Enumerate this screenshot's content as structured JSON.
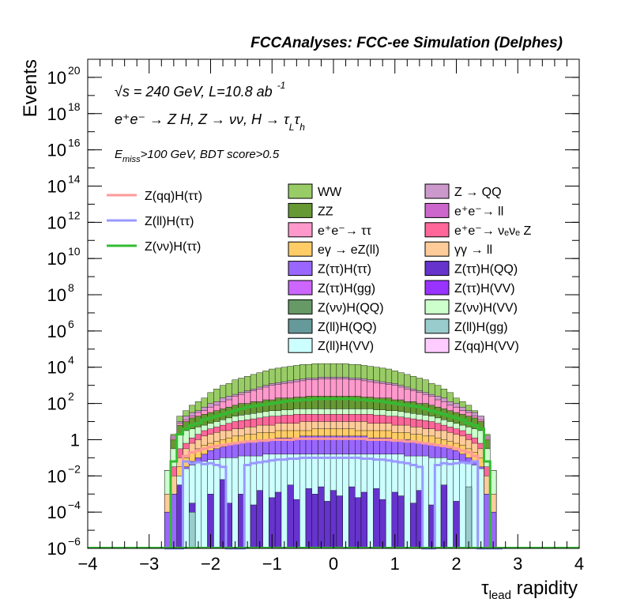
{
  "header": {
    "title": "FCCAnalyses: FCC-ee Simulation (Delphes)"
  },
  "annotations": {
    "line1": "√s = 240 GeV, L=10.8 ab",
    "line1_sup": "-1",
    "line2": "e⁺e⁻ → Z H, Z → νν, H → τ",
    "line2_sub1": "L",
    "line2_mid": "τ",
    "line2_sub2": "h",
    "line3_pre": "E",
    "line3_sub": "miss",
    "line3_post": ">100 GeV, BDT score>0.5"
  },
  "legend_signal": [
    {
      "label": "Z(qq)H(ττ)",
      "color": "#ff9999"
    },
    {
      "label": "Z(ll)H(ττ)",
      "color": "#9999ff"
    },
    {
      "label": "Z(νν)H(ττ)",
      "color": "#33bb33"
    }
  ],
  "legend_bkg": [
    {
      "label": "WW",
      "color": "#99cc66"
    },
    {
      "label": "Z → QQ",
      "color": "#cc99cc"
    },
    {
      "label": "ZZ",
      "color": "#669933"
    },
    {
      "label": "e⁺e⁻→ ll",
      "color": "#cc66cc"
    },
    {
      "label": "e⁺e⁻→ ττ",
      "color": "#ff99cc"
    },
    {
      "label": "e⁺e⁻→ νₑνₑ Z",
      "color": "#ff6699"
    },
    {
      "label": "eγ → eZ(ll)",
      "color": "#ffcc66"
    },
    {
      "label": "γγ → ll",
      "color": "#ffcc99"
    },
    {
      "label": "Z(ττ)H(ττ)",
      "color": "#9966ff"
    },
    {
      "label": "Z(ττ)H(QQ)",
      "color": "#6633cc"
    },
    {
      "label": "Z(ττ)H(gg)",
      "color": "#cc66ff"
    },
    {
      "label": "Z(ττ)H(VV)",
      "color": "#9933ff"
    },
    {
      "label": "Z(νν)H(QQ)",
      "color": "#669966"
    },
    {
      "label": "Z(νν)H(VV)",
      "color": "#ccffcc"
    },
    {
      "label": "Z(ll)H(QQ)",
      "color": "#669999"
    },
    {
      "label": "Z(ll)H(gg)",
      "color": "#99cccc"
    },
    {
      "label": "Z(ll)H(VV)",
      "color": "#ccffff"
    },
    {
      "label": "Z(qq)H(VV)",
      "color": "#ffccff"
    }
  ],
  "chart_data": {
    "type": "area",
    "title": "FCCAnalyses: FCC-ee Simulation (Delphes)",
    "xlabel": "τlead rapidity",
    "xlabel_main": "τ",
    "xlabel_sub": "lead",
    "xlabel_post": " rapidity",
    "ylabel": "Events",
    "log_y": true,
    "xlim": [
      -4,
      4
    ],
    "ylim_exp": [
      -6,
      21
    ],
    "x_ticks": [
      "−4",
      "−3",
      "−2",
      "−1",
      "0",
      "1",
      "2",
      "3",
      "4"
    ],
    "y_ticks": [
      {
        "base": "10",
        "exp": "−6",
        "pos": -6
      },
      {
        "base": "10",
        "exp": "−4",
        "pos": -4
      },
      {
        "base": "10",
        "exp": "−2",
        "pos": -2
      },
      {
        "base": "1",
        "exp": "",
        "pos": 0
      },
      {
        "base": "10",
        "exp": "2",
        "pos": 2
      },
      {
        "base": "10",
        "exp": "4",
        "pos": 4
      },
      {
        "base": "10",
        "exp": "6",
        "pos": 6
      },
      {
        "base": "10",
        "exp": "8",
        "pos": 8
      },
      {
        "base": "10",
        "exp": "10",
        "pos": 10
      },
      {
        "base": "10",
        "exp": "12",
        "pos": 12
      },
      {
        "base": "10",
        "exp": "14",
        "pos": 14
      },
      {
        "base": "10",
        "exp": "16",
        "pos": 16
      },
      {
        "base": "10",
        "exp": "18",
        "pos": 18
      },
      {
        "base": "10",
        "exp": "20",
        "pos": 20
      }
    ],
    "bin_edges": [
      -2.75,
      -2.65,
      -2.55,
      -2.45,
      -2.35,
      -2.25,
      -2.15,
      -2.05,
      -1.95,
      -1.85,
      -1.75,
      -1.65,
      -1.55,
      -1.45,
      -1.35,
      -1.25,
      -1.15,
      -1.05,
      -0.95,
      -0.85,
      -0.75,
      -0.65,
      -0.55,
      -0.45,
      -0.35,
      -0.25,
      -0.15,
      -0.05,
      0.05,
      0.15,
      0.25,
      0.35,
      0.45,
      0.55,
      0.65,
      0.75,
      0.85,
      0.95,
      1.05,
      1.15,
      1.25,
      1.35,
      1.45,
      1.55,
      1.65,
      1.75,
      1.85,
      1.95,
      2.05,
      2.15,
      2.25,
      2.35,
      2.45,
      2.55,
      2.65,
      2.75
    ],
    "stack_layers_log10": [
      {
        "name": "WW",
        "color": "#99cc66",
        "values": [
          -1.7,
          0.3,
          1.3,
          1.6,
          1.9,
          2.1,
          2.3,
          2.6,
          2.8,
          3.0,
          3.1,
          3.3,
          3.4,
          3.5,
          3.6,
          3.7,
          3.8,
          3.9,
          3.95,
          4.0,
          4.05,
          4.1,
          4.15,
          4.15,
          4.2,
          4.2,
          4.2,
          4.2,
          4.2,
          4.2,
          4.15,
          4.15,
          4.1,
          4.05,
          4.0,
          3.95,
          3.9,
          3.8,
          3.7,
          3.6,
          3.5,
          3.4,
          3.3,
          3.1,
          3.0,
          2.8,
          2.6,
          2.3,
          2.1,
          1.9,
          1.6,
          1.3,
          0.3,
          -1.7
        ]
      },
      {
        "name": "Z → QQ",
        "color": "#cc99cc",
        "values": [
          -1.7,
          0.2,
          1.0,
          1.3,
          1.5,
          1.6,
          1.8,
          2.0,
          2.1,
          2.3,
          2.4,
          2.5,
          2.6,
          2.7,
          2.8,
          2.9,
          3.0,
          3.1,
          3.15,
          3.2,
          3.25,
          3.3,
          3.35,
          3.4,
          3.4,
          3.45,
          3.45,
          3.45,
          3.45,
          3.45,
          3.4,
          3.4,
          3.35,
          3.3,
          3.25,
          3.2,
          3.15,
          3.1,
          3.0,
          2.9,
          2.8,
          2.7,
          2.6,
          2.5,
          2.4,
          2.3,
          2.1,
          2.0,
          1.8,
          1.6,
          1.5,
          1.3,
          0.2,
          -1.7
        ]
      },
      {
        "name": "e⁺e⁻→ ττ",
        "color": "#ff99cc",
        "values": [
          -1.7,
          0.1,
          0.9,
          1.1,
          1.3,
          1.5,
          1.6,
          1.8,
          1.9,
          2.1,
          2.2,
          2.4,
          2.5,
          2.6,
          2.7,
          2.8,
          2.9,
          3.0,
          3.05,
          3.1,
          3.15,
          3.2,
          3.25,
          3.3,
          3.3,
          3.35,
          3.35,
          3.35,
          3.35,
          3.35,
          3.3,
          3.3,
          3.25,
          3.2,
          3.15,
          3.1,
          3.05,
          3.0,
          2.9,
          2.8,
          2.7,
          2.6,
          2.5,
          2.4,
          2.2,
          2.1,
          1.9,
          1.8,
          1.6,
          1.5,
          1.3,
          1.1,
          0.1,
          -1.7
        ]
      },
      {
        "name": "ZZ",
        "color": "#669933",
        "values": [
          -1.7,
          0.0,
          0.8,
          1.0,
          1.2,
          1.3,
          1.4,
          1.5,
          1.6,
          1.7,
          1.8,
          1.9,
          2.0,
          2.0,
          2.1,
          2.1,
          2.2,
          2.2,
          2.3,
          2.3,
          2.3,
          2.35,
          2.35,
          2.4,
          2.4,
          2.4,
          2.4,
          2.4,
          2.4,
          2.4,
          2.4,
          2.4,
          2.35,
          2.35,
          2.3,
          2.3,
          2.3,
          2.2,
          2.2,
          2.1,
          2.1,
          2.0,
          2.0,
          1.9,
          1.8,
          1.7,
          1.6,
          1.5,
          1.4,
          1.3,
          1.2,
          1.0,
          0.0,
          -1.7
        ]
      },
      {
        "name": "Z(νν)H(VV)",
        "color": "#ccffcc",
        "values": [
          -1.7,
          -0.5,
          0.3,
          0.5,
          0.6,
          0.7,
          0.8,
          0.9,
          1.0,
          1.1,
          1.2,
          1.3,
          1.35,
          1.4,
          1.45,
          1.5,
          1.55,
          1.6,
          1.6,
          1.65,
          1.65,
          1.7,
          1.7,
          1.7,
          1.7,
          1.7,
          1.7,
          1.7,
          1.7,
          1.7,
          1.7,
          1.7,
          1.7,
          1.7,
          1.65,
          1.65,
          1.6,
          1.6,
          1.55,
          1.5,
          1.45,
          1.4,
          1.35,
          1.3,
          1.2,
          1.1,
          1.0,
          0.9,
          0.8,
          0.7,
          0.6,
          0.5,
          -0.5,
          -1.7
        ]
      },
      {
        "name": "e⁺e⁻→ νₑνₑ Z",
        "color": "#ff6699",
        "values": [
          -3,
          -1.5,
          -0.5,
          -0.2,
          0.1,
          0.3,
          0.5,
          0.6,
          0.7,
          0.8,
          0.9,
          1.0,
          1.05,
          1.1,
          1.15,
          1.2,
          1.25,
          1.3,
          1.3,
          1.35,
          1.35,
          1.4,
          1.4,
          1.4,
          1.4,
          1.4,
          1.4,
          1.4,
          1.4,
          1.4,
          1.4,
          1.4,
          1.4,
          1.4,
          1.35,
          1.35,
          1.3,
          1.3,
          1.25,
          1.2,
          1.15,
          1.1,
          1.05,
          1.0,
          0.9,
          0.8,
          0.7,
          0.6,
          0.5,
          0.3,
          0.1,
          -0.2,
          -1.5,
          -3
        ]
      },
      {
        "name": "γγ → ll",
        "color": "#ffcc99",
        "values": [
          -3,
          -2,
          -1,
          -0.5,
          -0.2,
          0.0,
          0.2,
          0.3,
          0.4,
          0.5,
          0.5,
          0.6,
          0.6,
          0.7,
          0.7,
          0.8,
          0.8,
          0.8,
          0.9,
          0.9,
          0.9,
          0.9,
          1.0,
          1.0,
          1.0,
          1.0,
          1.0,
          1.0,
          1.0,
          1.0,
          1.0,
          1.0,
          1.0,
          0.9,
          0.9,
          0.9,
          0.9,
          0.8,
          0.8,
          0.8,
          0.7,
          0.7,
          0.6,
          0.6,
          0.5,
          0.5,
          0.4,
          0.3,
          0.2,
          0.0,
          -0.2,
          -0.5,
          -2,
          -3
        ]
      },
      {
        "name": "eγ → eZ(ll)",
        "color": "#ffcc66",
        "values": [
          -4,
          -3,
          -1.5,
          -1,
          -0.7,
          -0.5,
          -0.3,
          -0.2,
          -0.1,
          0.0,
          0.1,
          0.2,
          0.2,
          0.3,
          0.3,
          0.4,
          0.4,
          0.4,
          0.5,
          0.5,
          0.5,
          0.5,
          0.5,
          0.5,
          0.6,
          0.6,
          0.6,
          0.6,
          0.6,
          0.6,
          0.6,
          0.5,
          0.5,
          0.5,
          0.5,
          0.5,
          0.5,
          0.4,
          0.4,
          0.4,
          0.3,
          0.3,
          0.2,
          0.2,
          0.1,
          0.0,
          -0.1,
          -0.2,
          -0.3,
          -0.5,
          -0.7,
          -1,
          -3,
          -4
        ]
      },
      {
        "name": "Z(ττ)H(ττ)",
        "color": "#9966ff",
        "values": [
          -4,
          -3,
          -2,
          -1.5,
          -1.2,
          -1.0,
          -0.8,
          -0.6,
          -0.5,
          -0.4,
          -0.3,
          -0.2,
          -0.2,
          -0.1,
          -0.1,
          0.0,
          0.0,
          0.0,
          0.1,
          0.1,
          0.1,
          0.1,
          0.2,
          0.2,
          0.2,
          0.2,
          0.2,
          0.2,
          0.2,
          0.2,
          0.2,
          0.2,
          0.2,
          0.1,
          0.1,
          0.1,
          0.1,
          0.0,
          0.0,
          0.0,
          -0.1,
          -0.1,
          -0.2,
          -0.2,
          -0.3,
          -0.4,
          -0.5,
          -0.6,
          -0.8,
          -1.0,
          -1.2,
          -1.5,
          -3,
          -4
        ]
      },
      {
        "name": "Z(ll)H(VV)",
        "color": "#ccffff",
        "values": [
          -6,
          -6,
          -2,
          -1.6,
          -1.4,
          -1.3,
          -1.2,
          -1.1,
          -1.1,
          -1.0,
          -1.0,
          -1.0,
          -0.9,
          -0.9,
          -0.9,
          -0.9,
          -0.8,
          -0.8,
          -0.8,
          -0.8,
          -0.8,
          -0.8,
          -0.8,
          -0.8,
          -0.8,
          -0.8,
          -0.8,
          -0.8,
          -0.8,
          -0.8,
          -0.8,
          -0.8,
          -0.8,
          -0.8,
          -0.8,
          -0.8,
          -0.8,
          -0.8,
          -0.8,
          -0.9,
          -0.9,
          -0.9,
          -0.9,
          -1.0,
          -1.0,
          -1.0,
          -1.1,
          -1.1,
          -1.2,
          -1.3,
          -1.4,
          -1.6,
          -6,
          -6
        ]
      },
      {
        "name": "Z(ττ)H(QQ)",
        "color": "#6633cc",
        "values": [
          -6,
          -6,
          -2.5,
          -6,
          -3.5,
          -6,
          -6,
          -3,
          -6,
          -2.2,
          -3.5,
          -6,
          -3,
          -6,
          -3.6,
          -2.8,
          -6,
          -3.2,
          -2.9,
          -6,
          -2.5,
          -3.3,
          -6,
          -2.7,
          -3.0,
          -2.6,
          -3.4,
          -2.8,
          -3.1,
          -6,
          -2.6,
          -3.2,
          -2.9,
          -6,
          -2.7,
          -3.3,
          -6,
          -2.9,
          -3.1,
          -6,
          -3.5,
          -2.8,
          -6,
          -3.6,
          -6,
          -2.5,
          -6,
          -3.4,
          -6,
          -2.7,
          -6,
          -6,
          -6,
          -6
        ]
      },
      {
        "name": "Z(ll)H(gg)",
        "color": "#99cccc",
        "values": [
          -6,
          -6,
          -6,
          -6,
          -4,
          -6,
          -6,
          -6,
          -6,
          -6,
          -6,
          -6,
          -6,
          -6,
          -6,
          -6,
          -6,
          -6,
          -6,
          -6,
          -6,
          -6,
          -6,
          -6,
          -6,
          -6,
          -6,
          -6,
          -6,
          -6,
          -6,
          -6,
          -6,
          -6,
          -6,
          -6,
          -6,
          -6,
          -6,
          -6,
          -6,
          -6,
          -6,
          -6,
          -6,
          -6,
          -6,
          -6,
          -6,
          -2.6,
          -6,
          -6,
          -6,
          -6
        ]
      }
    ],
    "signal_lines_log10": [
      {
        "name": "Z(νν)H(ττ)",
        "color": "#33bb33",
        "values": [
          -6,
          -1.2,
          0.3,
          0.6,
          0.8,
          0.9,
          1.1,
          1.2,
          1.3,
          1.4,
          1.5,
          1.6,
          1.7,
          1.8,
          1.85,
          1.9,
          1.95,
          2.0,
          2.05,
          2.1,
          2.15,
          2.15,
          2.2,
          2.2,
          2.25,
          2.25,
          2.25,
          2.25,
          2.25,
          2.25,
          2.25,
          2.2,
          2.2,
          2.15,
          2.15,
          2.1,
          2.05,
          2.0,
          1.95,
          1.9,
          1.85,
          1.8,
          1.7,
          1.6,
          1.5,
          1.4,
          1.3,
          1.2,
          1.1,
          0.9,
          0.8,
          0.6,
          -1.2,
          -6
        ]
      },
      {
        "name": "Z(qq)H(ττ)",
        "color": "#ff9999",
        "values": [
          -6,
          -6,
          -6,
          -0.9,
          -0.7,
          -0.6,
          -0.5,
          -0.4,
          -0.35,
          -0.3,
          -0.25,
          -0.2,
          -0.15,
          -0.1,
          -0.1,
          -0.05,
          -0.05,
          0.0,
          0.0,
          0.0,
          0.0,
          0.05,
          0.05,
          0.05,
          0.05,
          0.05,
          0.05,
          0.05,
          0.05,
          0.05,
          0.05,
          0.05,
          0.05,
          0.0,
          0.0,
          0.0,
          0.0,
          -0.05,
          -0.05,
          -0.1,
          -0.1,
          -0.15,
          -0.2,
          -0.25,
          -0.3,
          -0.35,
          -0.4,
          -0.5,
          -0.6,
          -0.7,
          -0.9,
          -6,
          -6,
          -6
        ]
      },
      {
        "name": "Z(ll)H(ττ)",
        "color": "#9999ff",
        "values": [
          -6,
          -6,
          -6,
          -1.2,
          -1.3,
          -1.25,
          -1.35,
          -1.3,
          -1.4,
          -1.5,
          -6,
          -6,
          -6,
          -1.4,
          -1.3,
          -1.25,
          -1.2,
          -1.15,
          -1.1,
          -1.1,
          -1.05,
          -1.05,
          -1.0,
          -1.0,
          -1.0,
          -1.0,
          -1.0,
          -1.0,
          -1.0,
          -1.0,
          -1.0,
          -1.0,
          -1.05,
          -1.05,
          -1.1,
          -1.1,
          -1.15,
          -1.2,
          -1.25,
          -1.3,
          -1.4,
          -1.5,
          -6,
          -6,
          -1.4,
          -1.3,
          -1.35,
          -1.3,
          -1.25,
          -1.3,
          -1.2,
          -6,
          -6,
          -6
        ]
      }
    ]
  }
}
